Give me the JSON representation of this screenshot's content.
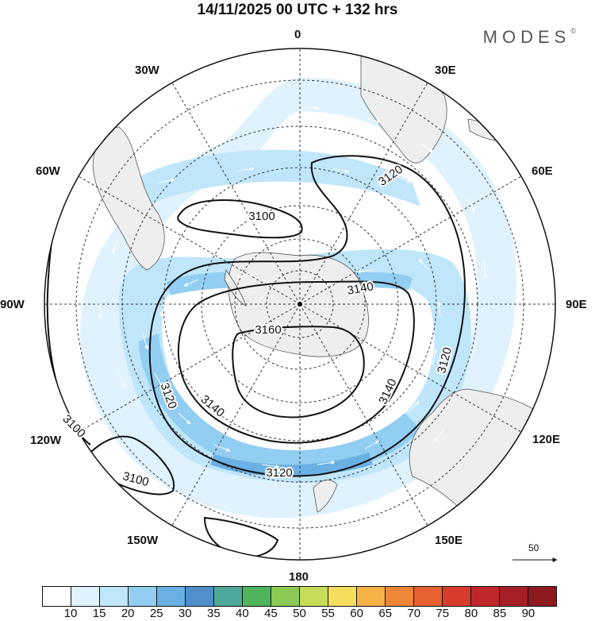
{
  "header": {
    "title": "14/11/2025  00 UTC  + 132 hrs",
    "brand": "MODES",
    "brand_mark": "©"
  },
  "map": {
    "projection": "polar-stereographic-south",
    "colors": {
      "land": "#eeeeee",
      "coast": "#555555",
      "grid": "#333333",
      "contour": "#111111",
      "arrow": "#ffffff"
    },
    "longitude_labels": [
      {
        "id": "0",
        "text": "0"
      },
      {
        "id": "30E",
        "text": "30E"
      },
      {
        "id": "60E",
        "text": "60E"
      },
      {
        "id": "90E",
        "text": "90E"
      },
      {
        "id": "120E",
        "text": "120E"
      },
      {
        "id": "150E",
        "text": "150E"
      },
      {
        "id": "180",
        "text": "180"
      },
      {
        "id": "150W",
        "text": "150W"
      },
      {
        "id": "120W",
        "text": "120W"
      },
      {
        "id": "90W",
        "text": "90W"
      },
      {
        "id": "60W",
        "text": "60W"
      },
      {
        "id": "30W",
        "text": "30W"
      }
    ],
    "contour_labels": [
      {
        "text": "3100",
        "value": 3100
      },
      {
        "text": "3100",
        "value": 3100
      },
      {
        "text": "3100",
        "value": 3100
      },
      {
        "text": "3120",
        "value": 3120
      },
      {
        "text": "3120",
        "value": 3120
      },
      {
        "text": "3120",
        "value": 3120
      },
      {
        "text": "3120",
        "value": 3120
      },
      {
        "text": "3140",
        "value": 3140
      },
      {
        "text": "3140",
        "value": 3140
      },
      {
        "text": "3140",
        "value": 3140
      },
      {
        "text": "3160",
        "value": 3160
      }
    ],
    "reference_vector": "50"
  },
  "colorbar": {
    "colors": [
      "#ffffff",
      "#dff2fd",
      "#bfe6fb",
      "#92cdf2",
      "#6ab0e4",
      "#4f90cb",
      "#4fa99a",
      "#4fb45c",
      "#8ccb53",
      "#c7dc59",
      "#f7dd5c",
      "#f5b247",
      "#ee8838",
      "#e6612f",
      "#d83c2c",
      "#c1272a",
      "#a51f26",
      "#8c1a1f"
    ],
    "ticks": [
      "10",
      "15",
      "20",
      "25",
      "30",
      "35",
      "40",
      "45",
      "50",
      "55",
      "60",
      "65",
      "70",
      "75",
      "80",
      "85",
      "90"
    ]
  }
}
